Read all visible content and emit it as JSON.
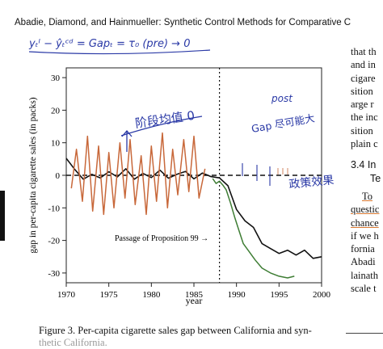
{
  "header": {
    "running_title": "Abadie, Diamond, and Hainmueller: Synthetic Control Methods for Comparative C"
  },
  "annotations": {
    "top_equation": "yₜᴵ − ŷₜᶜᵈ = Gapₜ = τ₀ (pre) → 0",
    "pre_note": "阶段均值 0",
    "post_label": "post",
    "post_note": "Gap 尽可能大",
    "policy_note": "政策效果"
  },
  "chart_data": {
    "type": "line",
    "title": "",
    "xlabel": "year",
    "ylabel": "gap in per-capita cigarette sales (in packs)",
    "xlim": [
      1970,
      2000
    ],
    "ylim": [
      -33,
      33
    ],
    "x_ticks": [
      "1970",
      "1975",
      "1980",
      "1985",
      "1990",
      "1995",
      "2000"
    ],
    "y_ticks": [
      "30",
      "20",
      "10",
      "0",
      "-10",
      "-20",
      "-30"
    ],
    "intervention_year": 1988,
    "reference_line": 0,
    "intervention_label": "Passage of Proposition 99 →",
    "series": [
      {
        "color": "#111111",
        "x": [
          1970,
          1971,
          1972,
          1973,
          1974,
          1975,
          1976,
          1977,
          1978,
          1979,
          1980,
          1981,
          1982,
          1983,
          1984,
          1985,
          1986,
          1987,
          1988,
          1989,
          1990,
          1991,
          1992,
          1993,
          1994,
          1995,
          1996,
          1997,
          1998,
          1999,
          2000
        ],
        "y": [
          5.2,
          1.8,
          -1.2,
          0.3,
          -0.8,
          1.1,
          -0.5,
          2.0,
          -1.2,
          0.6,
          -0.7,
          1.6,
          -0.9,
          0.3,
          1.2,
          -1.1,
          0.7,
          -0.4,
          -0.8,
          -3.2,
          -10.5,
          -14.0,
          -16.0,
          -21.0,
          -22.5,
          -24.0,
          -23.0,
          -24.5,
          -23.0,
          -25.5,
          -25.0
        ]
      },
      {
        "color": "#c8683a",
        "x": [
          1970.6,
          1971.2,
          1971.9,
          1972.5,
          1973.1,
          1973.8,
          1974.4,
          1975.0,
          1975.6,
          1976.3,
          1976.9,
          1977.5,
          1978.1,
          1978.8,
          1979.4,
          1980.0,
          1980.6,
          1981.3,
          1981.9,
          1982.5,
          1983.1,
          1983.8,
          1984.4,
          1985.0,
          1985.6,
          1986.3
        ],
        "y": [
          -4,
          8,
          -8,
          12,
          -11,
          9,
          -12,
          7,
          -10,
          10,
          -7,
          11,
          -9,
          6,
          -12,
          9,
          -8,
          13,
          -10,
          8,
          -6,
          11,
          -5,
          12,
          -7,
          2
        ]
      },
      {
        "color": "#3e7d34",
        "x": [
          1987.2,
          1987.6,
          1988.0,
          1988.4,
          1988.8,
          1989.3,
          1989.8,
          1990.3,
          1990.8,
          1991.5,
          1992.2,
          1993.0,
          1994.0,
          1995.0,
          1996.0,
          1996.8
        ],
        "y": [
          -1.0,
          -2.5,
          -1.8,
          -3.0,
          -4.5,
          -8.5,
          -13.0,
          -17.0,
          -21.0,
          -23.5,
          -26.0,
          -28.5,
          -30.0,
          -31.0,
          -31.5,
          -31.0
        ]
      }
    ]
  },
  "right_column": {
    "lines": [
      "that th",
      "and in",
      "cigare",
      "sition",
      "arge r",
      "the inc",
      "sition",
      "plain c"
    ],
    "section_heading": "3.4  In",
    "section_heading2": "Te",
    "lines2": [
      "To",
      "questic",
      "chance",
      "if we h",
      "fornia",
      "Abadi",
      "lainath",
      "scale t"
    ]
  },
  "caption": {
    "line1": "Figure 3.  Per-capita cigarette sales gap between California and syn-",
    "line2": "thetic California."
  }
}
